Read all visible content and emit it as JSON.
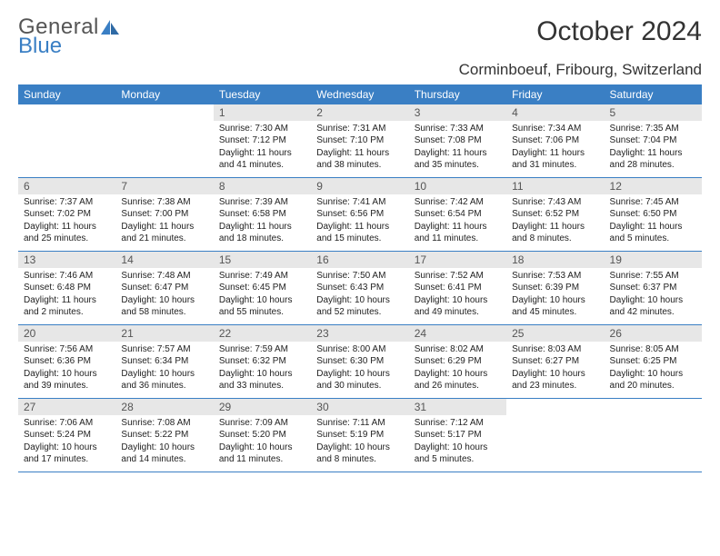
{
  "logo": {
    "line1": "General",
    "line2": "Blue",
    "sail_color": "#3a7fc4"
  },
  "title": "October 2024",
  "location": "Corminboeuf, Fribourg, Switzerland",
  "colors": {
    "header_bg": "#3a7fc4",
    "header_fg": "#ffffff",
    "daynum_bg": "#e7e7e7",
    "rule": "#3a7fc4",
    "text": "#222222"
  },
  "headers": [
    "Sunday",
    "Monday",
    "Tuesday",
    "Wednesday",
    "Thursday",
    "Friday",
    "Saturday"
  ],
  "leading_blanks": 2,
  "days": [
    {
      "n": 1,
      "sr": "7:30 AM",
      "ss": "7:12 PM",
      "dl": "11 hours and 41 minutes."
    },
    {
      "n": 2,
      "sr": "7:31 AM",
      "ss": "7:10 PM",
      "dl": "11 hours and 38 minutes."
    },
    {
      "n": 3,
      "sr": "7:33 AM",
      "ss": "7:08 PM",
      "dl": "11 hours and 35 minutes."
    },
    {
      "n": 4,
      "sr": "7:34 AM",
      "ss": "7:06 PM",
      "dl": "11 hours and 31 minutes."
    },
    {
      "n": 5,
      "sr": "7:35 AM",
      "ss": "7:04 PM",
      "dl": "11 hours and 28 minutes."
    },
    {
      "n": 6,
      "sr": "7:37 AM",
      "ss": "7:02 PM",
      "dl": "11 hours and 25 minutes."
    },
    {
      "n": 7,
      "sr": "7:38 AM",
      "ss": "7:00 PM",
      "dl": "11 hours and 21 minutes."
    },
    {
      "n": 8,
      "sr": "7:39 AM",
      "ss": "6:58 PM",
      "dl": "11 hours and 18 minutes."
    },
    {
      "n": 9,
      "sr": "7:41 AM",
      "ss": "6:56 PM",
      "dl": "11 hours and 15 minutes."
    },
    {
      "n": 10,
      "sr": "7:42 AM",
      "ss": "6:54 PM",
      "dl": "11 hours and 11 minutes."
    },
    {
      "n": 11,
      "sr": "7:43 AM",
      "ss": "6:52 PM",
      "dl": "11 hours and 8 minutes."
    },
    {
      "n": 12,
      "sr": "7:45 AM",
      "ss": "6:50 PM",
      "dl": "11 hours and 5 minutes."
    },
    {
      "n": 13,
      "sr": "7:46 AM",
      "ss": "6:48 PM",
      "dl": "11 hours and 2 minutes."
    },
    {
      "n": 14,
      "sr": "7:48 AM",
      "ss": "6:47 PM",
      "dl": "10 hours and 58 minutes."
    },
    {
      "n": 15,
      "sr": "7:49 AM",
      "ss": "6:45 PM",
      "dl": "10 hours and 55 minutes."
    },
    {
      "n": 16,
      "sr": "7:50 AM",
      "ss": "6:43 PM",
      "dl": "10 hours and 52 minutes."
    },
    {
      "n": 17,
      "sr": "7:52 AM",
      "ss": "6:41 PM",
      "dl": "10 hours and 49 minutes."
    },
    {
      "n": 18,
      "sr": "7:53 AM",
      "ss": "6:39 PM",
      "dl": "10 hours and 45 minutes."
    },
    {
      "n": 19,
      "sr": "7:55 AM",
      "ss": "6:37 PM",
      "dl": "10 hours and 42 minutes."
    },
    {
      "n": 20,
      "sr": "7:56 AM",
      "ss": "6:36 PM",
      "dl": "10 hours and 39 minutes."
    },
    {
      "n": 21,
      "sr": "7:57 AM",
      "ss": "6:34 PM",
      "dl": "10 hours and 36 minutes."
    },
    {
      "n": 22,
      "sr": "7:59 AM",
      "ss": "6:32 PM",
      "dl": "10 hours and 33 minutes."
    },
    {
      "n": 23,
      "sr": "8:00 AM",
      "ss": "6:30 PM",
      "dl": "10 hours and 30 minutes."
    },
    {
      "n": 24,
      "sr": "8:02 AM",
      "ss": "6:29 PM",
      "dl": "10 hours and 26 minutes."
    },
    {
      "n": 25,
      "sr": "8:03 AM",
      "ss": "6:27 PM",
      "dl": "10 hours and 23 minutes."
    },
    {
      "n": 26,
      "sr": "8:05 AM",
      "ss": "6:25 PM",
      "dl": "10 hours and 20 minutes."
    },
    {
      "n": 27,
      "sr": "7:06 AM",
      "ss": "5:24 PM",
      "dl": "10 hours and 17 minutes."
    },
    {
      "n": 28,
      "sr": "7:08 AM",
      "ss": "5:22 PM",
      "dl": "10 hours and 14 minutes."
    },
    {
      "n": 29,
      "sr": "7:09 AM",
      "ss": "5:20 PM",
      "dl": "10 hours and 11 minutes."
    },
    {
      "n": 30,
      "sr": "7:11 AM",
      "ss": "5:19 PM",
      "dl": "10 hours and 8 minutes."
    },
    {
      "n": 31,
      "sr": "7:12 AM",
      "ss": "5:17 PM",
      "dl": "10 hours and 5 minutes."
    }
  ],
  "labels": {
    "sunrise": "Sunrise:",
    "sunset": "Sunset:",
    "daylight": "Daylight:"
  }
}
